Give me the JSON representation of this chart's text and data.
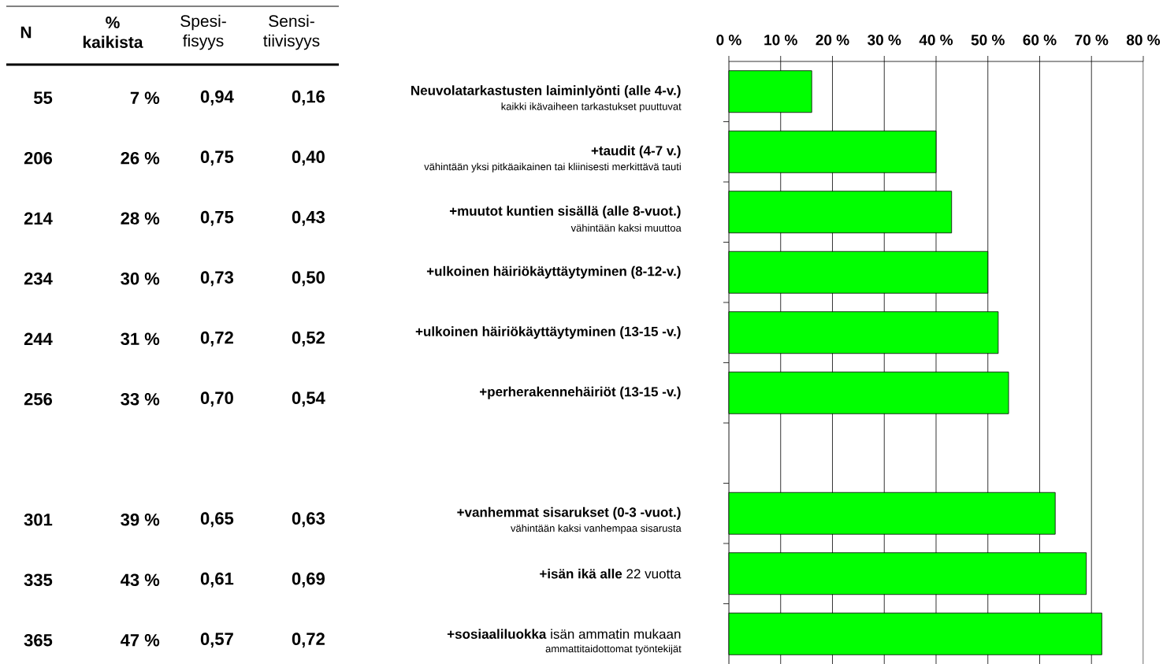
{
  "chart_data": {
    "type": "bar",
    "orientation": "horizontal",
    "categories": [
      "**Neuvolatarkastusten laiminlyönti (alle 4-v.)**",
      "**+taudit (4-7 v.)**",
      "**+muutot kuntien sisällä (alle 8-vuot.)**",
      "**+ulkoinen häiriökäyttäytyminen (8-12-v.)**",
      "**+ulkoinen häiriökäyttäytyminen (13-15 -v.)**",
      "**+perherakennehäiriöt (13-15 -v.)**",
      null,
      "**+vanhemmat sisarukset (0-3 -vuot.)**",
      "**+isän ikä alle** 22 vuotta",
      "**+sosiaaliluokka** isän ammatin mukaan"
    ],
    "values": [
      16,
      40,
      43,
      50,
      52,
      54,
      null,
      63,
      69,
      72
    ],
    "color": "#00ff00",
    "xlim": [
      0,
      80
    ],
    "xticks": [
      {
        "value": 0,
        "label": "0 %"
      },
      {
        "value": 10,
        "label": "10 %"
      },
      {
        "value": 20,
        "label": "20 %"
      },
      {
        "value": 30,
        "label": "30 %"
      },
      {
        "value": 40,
        "label": "40 %"
      },
      {
        "value": 50,
        "label": "50 %"
      },
      {
        "value": 60,
        "label": "60 %"
      },
      {
        "value": 70,
        "label": "70 %"
      },
      {
        "value": 80,
        "label": "80 %"
      }
    ],
    "grid": "x",
    "annotations": [
      "N",
      "% kaikista",
      "Spesi- fisyys",
      "Sensi- tiivisyys",
      "55",
      "7 %",
      "0,94",
      "0,16",
      "206",
      "26 %",
      "0,75",
      "0,40",
      "214",
      "28 %",
      "0,75",
      "0,43",
      "234",
      "30 %",
      "0,73",
      "0,50",
      "244",
      "31 %",
      "0,72",
      "0,52",
      "256",
      "33 %",
      "0,70",
      "0,54",
      "301",
      "39 %",
      "0,65",
      "0,63",
      "335",
      "43 %",
      "0,61",
      "0,69",
      "365",
      "47 %",
      "0,57",
      "0,72",
      "kaikki ikävaiheen tarkastukset puuttuvat",
      "vähintään yksi pitkäaikainen tai kliinisesti merkittävä tauti",
      "vähintään kaksi muuttoa",
      "vähintään kaksi vanhempaa sisarusta",
      "ammattitaidottomat työntekijät"
    ]
  }
}
